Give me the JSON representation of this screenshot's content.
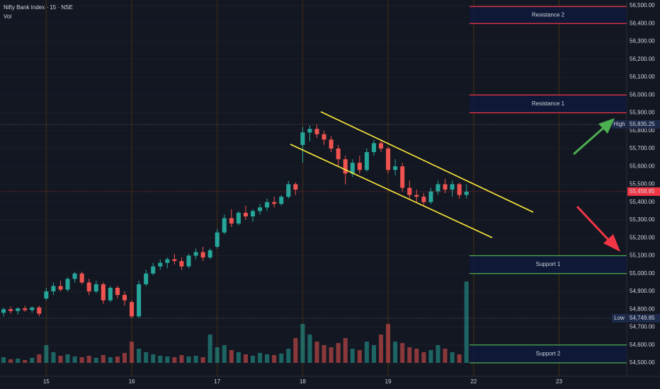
{
  "chart_data": {
    "type": "candlestick",
    "title": "Nifty Bank Index · 15 · NSE",
    "volume_label": "Vol",
    "categories": [
      null,
      null,
      null,
      null,
      null,
      null,
      "15",
      null,
      null,
      null,
      null,
      null,
      null,
      null,
      null,
      null,
      null,
      null,
      "16",
      null,
      null,
      null,
      null,
      null,
      null,
      null,
      null,
      null,
      null,
      null,
      "17",
      null,
      null,
      null,
      null,
      null,
      null,
      null,
      null,
      null,
      null,
      null,
      "18",
      null,
      null,
      null,
      null,
      null,
      null,
      null,
      null,
      null,
      null,
      null,
      "19",
      null,
      null,
      null,
      null,
      null,
      null,
      null,
      null,
      null,
      null,
      null,
      "22",
      null,
      null,
      null,
      null,
      null,
      null,
      null,
      null,
      null,
      null,
      null,
      "23",
      null,
      null,
      null,
      null,
      null,
      null,
      null,
      null,
      null
    ],
    "open": [
      54780,
      54800,
      54790,
      54805,
      54795,
      54810,
      54860,
      54900,
      54930,
      54910,
      54970,
      55000,
      54950,
      54900,
      54940,
      54850,
      54920,
      54880,
      54840,
      54760,
      54940,
      55000,
      55040,
      55060,
      55080,
      55070,
      55040,
      55100,
      55120,
      55090,
      55150,
      55230,
      55310,
      55280,
      55340,
      55320,
      55350,
      55370,
      55400,
      55390,
      55430,
      55500,
      55720,
      55790,
      55810,
      55780,
      55750,
      55700,
      55640,
      55560,
      55620,
      55580,
      55680,
      55730,
      55700,
      55580,
      55600,
      55480,
      55440,
      55430,
      55400,
      55460,
      55500,
      55470,
      55500,
      55440,
      null,
      null,
      null,
      null,
      null,
      null,
      null,
      null,
      null,
      null,
      null,
      null,
      null,
      null,
      null,
      null,
      null,
      null,
      null,
      null,
      null,
      null
    ],
    "high": [
      54810,
      54815,
      54810,
      54820,
      54815,
      54820,
      54920,
      54950,
      54960,
      54980,
      55010,
      55010,
      54970,
      54960,
      54950,
      54930,
      54930,
      54900,
      54850,
      54960,
      55020,
      55060,
      55080,
      55090,
      55110,
      55090,
      55110,
      55140,
      55150,
      55140,
      55250,
      55330,
      55360,
      55350,
      55380,
      55360,
      55390,
      55420,
      55430,
      55440,
      55520,
      55510,
      55820,
      55830,
      55835.25,
      55800,
      55770,
      55720,
      55660,
      55640,
      55660,
      55700,
      55750,
      55750,
      55710,
      55640,
      55620,
      55520,
      55470,
      55450,
      55480,
      55520,
      55530,
      55520,
      55510,
      55500,
      null,
      null,
      null,
      null,
      null,
      null,
      null,
      null,
      null,
      null,
      null,
      null,
      null,
      null,
      null,
      null,
      null,
      null,
      null,
      null,
      null,
      null
    ],
    "low": [
      54760,
      54775,
      54770,
      54785,
      54780,
      54760,
      54850,
      54880,
      54900,
      54900,
      54950,
      54940,
      54880,
      54890,
      54830,
      54840,
      54860,
      54820,
      54749.85,
      54750,
      54930,
      54990,
      55020,
      55030,
      55050,
      55020,
      55030,
      55080,
      55070,
      55080,
      55140,
      55220,
      55260,
      55270,
      55300,
      55290,
      55330,
      55350,
      55370,
      55380,
      55420,
      55440,
      55620,
      55740,
      55760,
      55720,
      55680,
      55600,
      55500,
      55540,
      55560,
      55570,
      55660,
      55680,
      55560,
      55550,
      55460,
      55420,
      55400,
      55380,
      55390,
      55440,
      55450,
      55430,
      55420,
      55420,
      null,
      null,
      null,
      null,
      null,
      null,
      null,
      null,
      null,
      null,
      null,
      null,
      null,
      null,
      null,
      null,
      null,
      null,
      null,
      null,
      null,
      null
    ],
    "close": [
      54800,
      54790,
      54805,
      54795,
      54810,
      54775,
      54900,
      54930,
      54910,
      54970,
      55000,
      54950,
      54900,
      54940,
      54850,
      54920,
      54880,
      54850,
      54760,
      54940,
      55000,
      55040,
      55060,
      55080,
      55070,
      55040,
      55100,
      55120,
      55090,
      55130,
      55230,
      55310,
      55280,
      55340,
      55320,
      55350,
      55370,
      55400,
      55390,
      55430,
      55500,
      55470,
      55790,
      55810,
      55780,
      55750,
      55700,
      55640,
      55560,
      55620,
      55580,
      55680,
      55730,
      55700,
      55580,
      55600,
      55480,
      55440,
      55430,
      55400,
      55460,
      55500,
      55470,
      55500,
      55440,
      55458.85,
      null,
      null,
      null,
      null,
      null,
      null,
      null,
      null,
      null,
      null,
      null,
      null,
      null,
      null,
      null,
      null,
      null,
      null,
      null,
      null,
      null,
      null
    ],
    "volume": [
      8,
      5,
      6,
      4,
      7,
      12,
      25,
      15,
      10,
      12,
      9,
      8,
      10,
      7,
      11,
      8,
      9,
      14,
      30,
      20,
      15,
      12,
      10,
      9,
      8,
      11,
      9,
      10,
      8,
      40,
      22,
      25,
      18,
      15,
      12,
      10,
      14,
      12,
      11,
      13,
      20,
      35,
      55,
      40,
      30,
      25,
      22,
      28,
      35,
      20,
      18,
      30,
      25,
      40,
      55,
      30,
      28,
      22,
      20,
      15,
      18,
      25,
      20,
      15,
      12,
      115,
      null,
      null,
      null,
      null,
      null,
      null,
      null,
      null,
      null,
      null,
      null,
      null,
      null,
      null,
      null,
      null,
      null,
      null,
      null,
      null,
      null,
      null
    ],
    "volume_ylim": [
      0,
      500
    ],
    "up_color": "#26a69a",
    "down_color": "#ef5350",
    "ylim": [
      54500,
      56500
    ],
    "yticks": [
      {
        "value": 56500,
        "label": "56,500.00"
      },
      {
        "value": 56400,
        "label": "56,400.00"
      },
      {
        "value": 56300,
        "label": "56,300.00"
      },
      {
        "value": 56200,
        "label": "56,200.00"
      },
      {
        "value": 56100,
        "label": "56,100.00"
      },
      {
        "value": 56000,
        "label": "56,000.00"
      },
      {
        "value": 55900,
        "label": "55,900.00"
      },
      {
        "value": 55800,
        "label": "55,800.00"
      },
      {
        "value": 55700,
        "label": "55,700.00"
      },
      {
        "value": 55600,
        "label": "55,600.00"
      },
      {
        "value": 55500,
        "label": "55,500.00"
      },
      {
        "value": 55400,
        "label": "55,400.00"
      },
      {
        "value": 55300,
        "label": "55,300.00"
      },
      {
        "value": 55200,
        "label": "55,200.00"
      },
      {
        "value": 55100,
        "label": "55,100.00"
      },
      {
        "value": 55000,
        "label": "55,000.00"
      },
      {
        "value": 54900,
        "label": "54,900.00"
      },
      {
        "value": 54800,
        "label": "54,800.00"
      },
      {
        "value": 54700,
        "label": "54,700.00"
      },
      {
        "value": 54600,
        "label": "54,600.00"
      },
      {
        "value": 54500,
        "label": "54,500.00"
      }
    ],
    "zones": [
      {
        "name": "Resistance 2",
        "from": 56400,
        "to": 56495,
        "color": "#f23645"
      },
      {
        "name": "Resistance 1",
        "from": 55900,
        "to": 56000,
        "color": "#f23645"
      },
      {
        "name": "Support 1",
        "from": 55000,
        "to": 55100,
        "color": "#4caf50"
      },
      {
        "name": "Support 2",
        "from": 54500,
        "to": 54600,
        "color": "#4caf50"
      }
    ],
    "high_marker": {
      "label": "High",
      "value": 55835.25,
      "value_label": "55,835.25"
    },
    "low_marker": {
      "label": "Low",
      "value": 54749.85,
      "value_label": "54,749.85"
    },
    "last_marker": {
      "value": 55458.85,
      "value_label": "55,458.85",
      "color": "#f23645"
    }
  }
}
